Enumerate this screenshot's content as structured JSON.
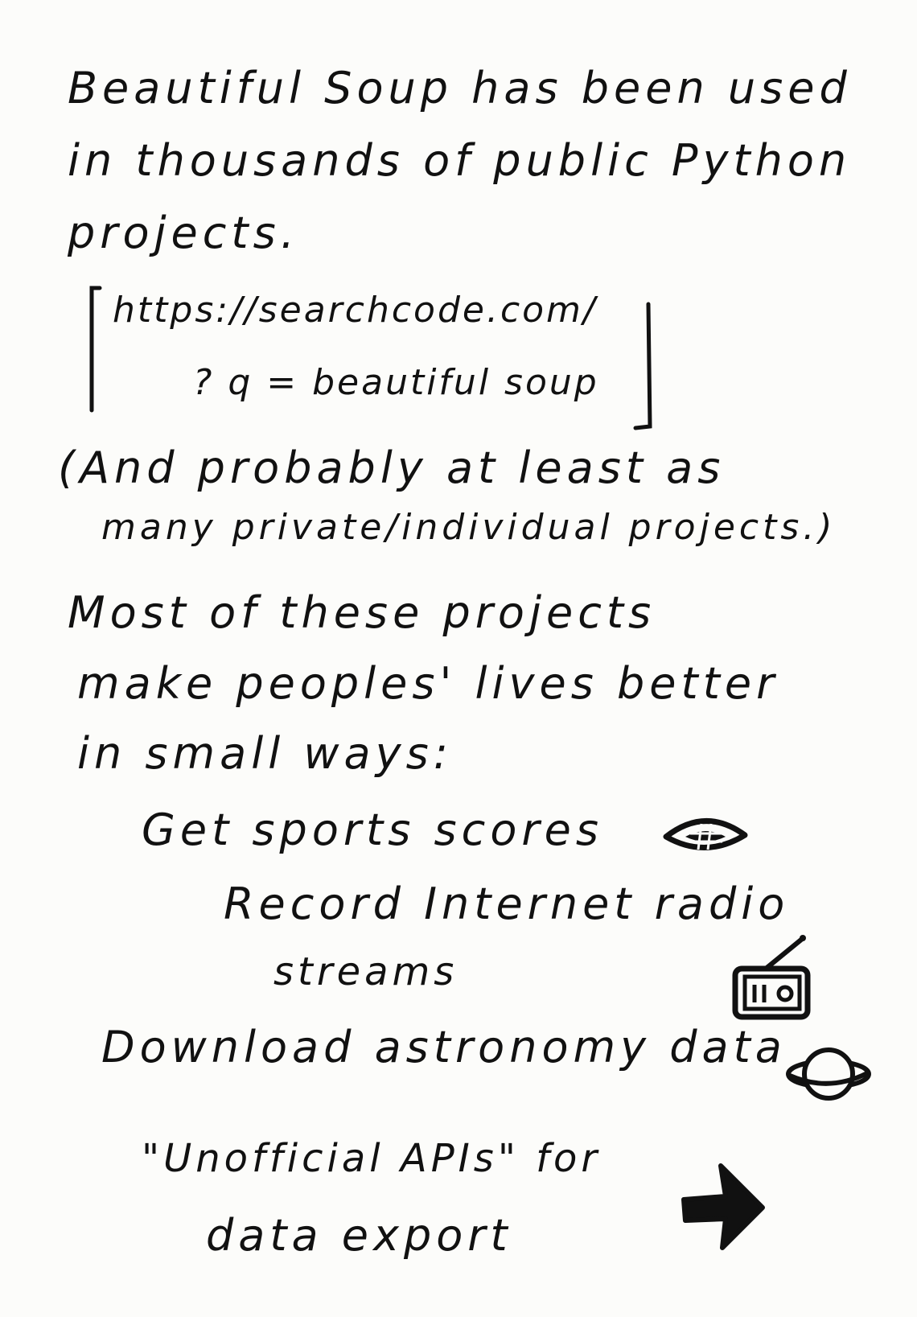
{
  "intro": {
    "line1": "Beautiful Soup has been used",
    "line2": "in thousands of public Python",
    "line3": "projects."
  },
  "citation": {
    "line1": "https://searchcode.com/",
    "line2": "? q = beautiful soup"
  },
  "aside": {
    "line1": "(And probably at least as",
    "line2": "many private/individual projects.)"
  },
  "claim": {
    "line1": "Most of these projects",
    "line2": "make peoples' lives better",
    "line3": "in small ways:"
  },
  "examples": {
    "sports": "Get sports scores",
    "radio_line1": "Record Internet radio",
    "radio_line2": "streams",
    "astronomy": "Download astronomy data",
    "api_line1": "\"Unofficial APIs\" for",
    "api_line2": "data export"
  },
  "icons": {
    "sports": "eye-icon",
    "radio": "radio-icon",
    "astronomy": "planet-icon",
    "api": "arrow-right-icon"
  },
  "colors": {
    "ink": "#111111",
    "paper": "#fcfcfa"
  }
}
